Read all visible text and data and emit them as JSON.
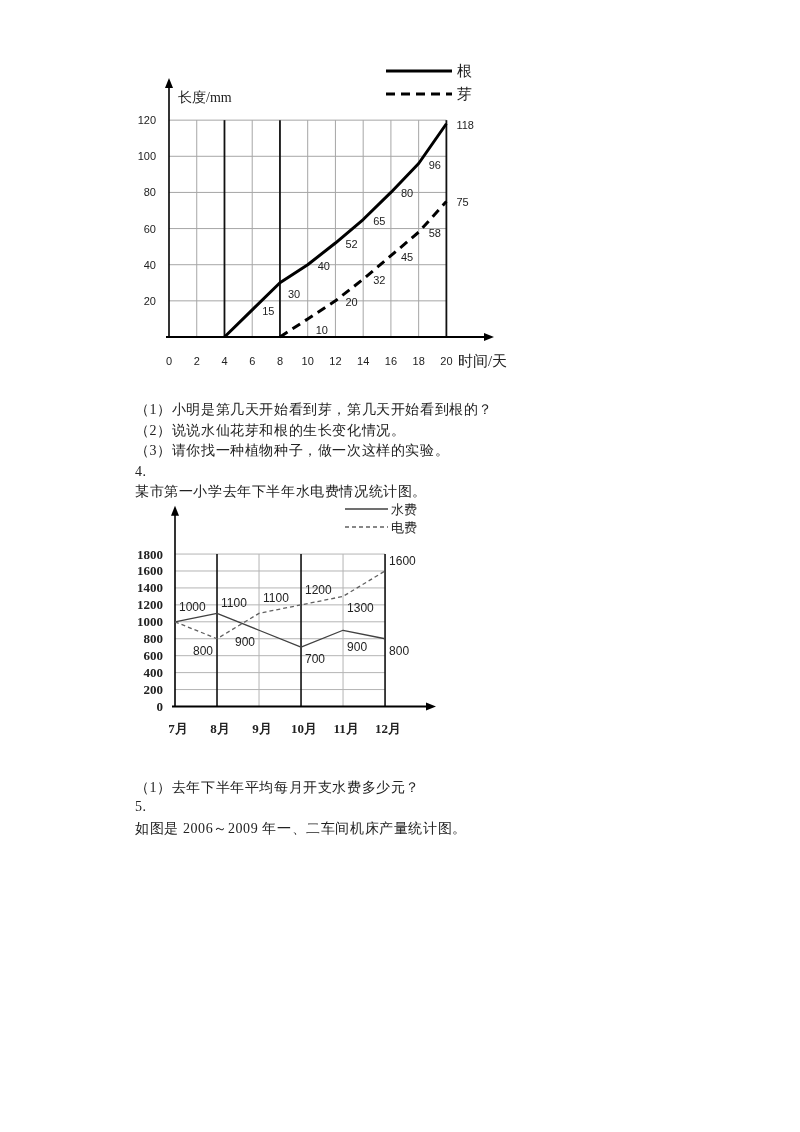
{
  "chart_data": [
    {
      "type": "line",
      "xlabel": "时间/天",
      "ylabel": "长度/mm",
      "legend": "top right",
      "grid": true,
      "xlim": [
        0,
        23
      ],
      "ylim": [
        0,
        140
      ],
      "xticks": [
        0,
        2,
        4,
        6,
        8,
        10,
        12,
        14,
        16,
        18,
        20
      ],
      "yticks": [
        20,
        40,
        60,
        80,
        100,
        120
      ],
      "series": [
        {
          "name": "根",
          "color": "#000000",
          "line_style": "solid",
          "x": [
            4,
            6,
            8,
            10,
            12,
            14,
            16,
            18,
            20
          ],
          "values": [
            0,
            15,
            30,
            40,
            52,
            65,
            80,
            96,
            118
          ],
          "value_labels": [
            null,
            "15",
            "30",
            "40",
            "52",
            "65",
            "80",
            "96",
            "118"
          ]
        },
        {
          "name": "芽",
          "color": "#000000",
          "line_style": "dashed",
          "x": [
            8,
            10,
            12,
            14,
            16,
            18,
            20
          ],
          "values": [
            0,
            10,
            20,
            32,
            45,
            58,
            75
          ],
          "value_labels": [
            null,
            "10",
            "20",
            "32",
            "45",
            "58",
            "75"
          ]
        }
      ],
      "annotations": [
        "（1）小明是第几天开始看到芽，第几天开始看到根的？",
        "（2）说说水仙花芽和根的生长变化情况。",
        "（3）请你找一种植物种子，做一次这样的实验。"
      ]
    },
    {
      "type": "line",
      "title": "某市第一小学去年下半年水电费情况统计图。",
      "legend": "top right",
      "grid": true,
      "categories": [
        "7月",
        "8月",
        "9月",
        "10月",
        "11月",
        "12月"
      ],
      "ylim": [
        0,
        2300
      ],
      "yticks": [
        0,
        200,
        400,
        600,
        800,
        1000,
        1200,
        1400,
        1600,
        1800
      ],
      "series": [
        {
          "name": "水费",
          "color": "#404040",
          "line_style": "solid",
          "values": [
            1000,
            1100,
            900,
            700,
            900,
            800
          ],
          "value_labels": [
            "1000",
            "1100",
            "900",
            "700",
            "900",
            "800"
          ]
        },
        {
          "name": "电费",
          "color": "#606060",
          "line_style": "dashed",
          "values": [
            1000,
            800,
            1100,
            1200,
            1300,
            1600
          ],
          "value_labels": [
            null,
            "800",
            "1100",
            "1200",
            "1300",
            "1600"
          ]
        }
      ],
      "annotations": [
        "4.",
        "（1）去年下半年平均每月开支水费多少元？",
        "5.",
        "如图是 2006～2009 年一、二车间机床产量统计图。"
      ]
    }
  ]
}
